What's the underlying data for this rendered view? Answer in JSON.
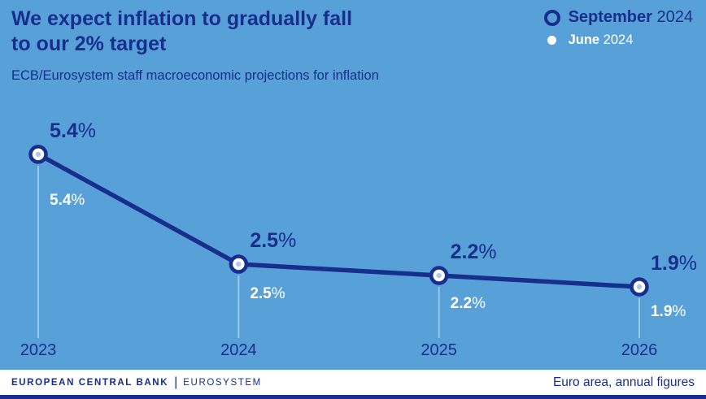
{
  "colors": {
    "background": "#58A1D8",
    "navy": "#172E8C",
    "white": "#FFFFFF",
    "marker_center": "#A9CCEB",
    "guide": "rgba(255,255,255,0.4)"
  },
  "header": {
    "title_line1": "We expect inflation to gradually fall",
    "title_line2": "to our 2% target",
    "subtitle": "ECB/Eurosystem staff macroeconomic projections for inflation"
  },
  "legend": {
    "september": {
      "name": "September",
      "year": "2024"
    },
    "june": {
      "name": "June",
      "year": "2024"
    }
  },
  "chart_data": {
    "type": "line",
    "title": "We expect inflation to gradually fall to our 2% target",
    "subtitle": "ECB/Eurosystem staff macroeconomic projections for inflation",
    "categories": [
      "2023",
      "2024",
      "2025",
      "2026"
    ],
    "unit": "%",
    "series": [
      {
        "name": "September 2024",
        "values": [
          5.4,
          2.5,
          2.2,
          1.9
        ],
        "labels": [
          "5.4%",
          "2.5%",
          "2.2%",
          "1.9%"
        ]
      },
      {
        "name": "June 2024",
        "values": [
          5.4,
          2.5,
          2.2,
          1.9
        ],
        "labels": [
          "5.4%",
          "2.5%",
          "2.2%",
          "1.9%"
        ]
      }
    ],
    "ylim": [
      1.5,
      6.0
    ],
    "grid": false,
    "legend_position": "top-right",
    "annotation": "Euro area, annual figures"
  },
  "footer": {
    "org": "EUROPEAN CENTRAL BANK",
    "separator": "|",
    "system": "EUROSYSTEM",
    "note": "Euro area, annual figures"
  }
}
